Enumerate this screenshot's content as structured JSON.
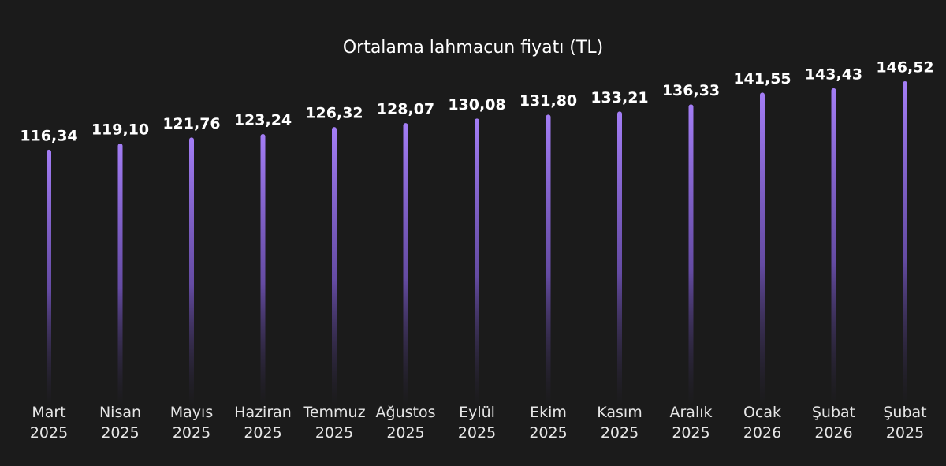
{
  "chart_data": {
    "type": "bar",
    "title": "Ortalama lahmacun fiyatı (TL)",
    "categories": [
      "Mart 2025",
      "Nisan 2025",
      "Mayıs 2025",
      "Haziran 2025",
      "Temmuz 2025",
      "Ağustos 2025",
      "Eylül 2025",
      "Ekim 2025",
      "Kasım 2025",
      "Aralık 2025",
      "Ocak 2026",
      "Şubat 2026",
      "Şubat 2025"
    ],
    "values": [
      116.34,
      119.1,
      121.76,
      123.24,
      126.32,
      128.07,
      130.08,
      131.8,
      133.21,
      136.33,
      141.55,
      143.43,
      146.52
    ],
    "value_labels": [
      "116,34",
      "119,10",
      "121,76",
      "123,24",
      "126,32",
      "128,07",
      "130,08",
      "131,80",
      "133,21",
      "136,33",
      "141,55",
      "143,43",
      "146,52"
    ],
    "color": "#9f78f2"
  }
}
